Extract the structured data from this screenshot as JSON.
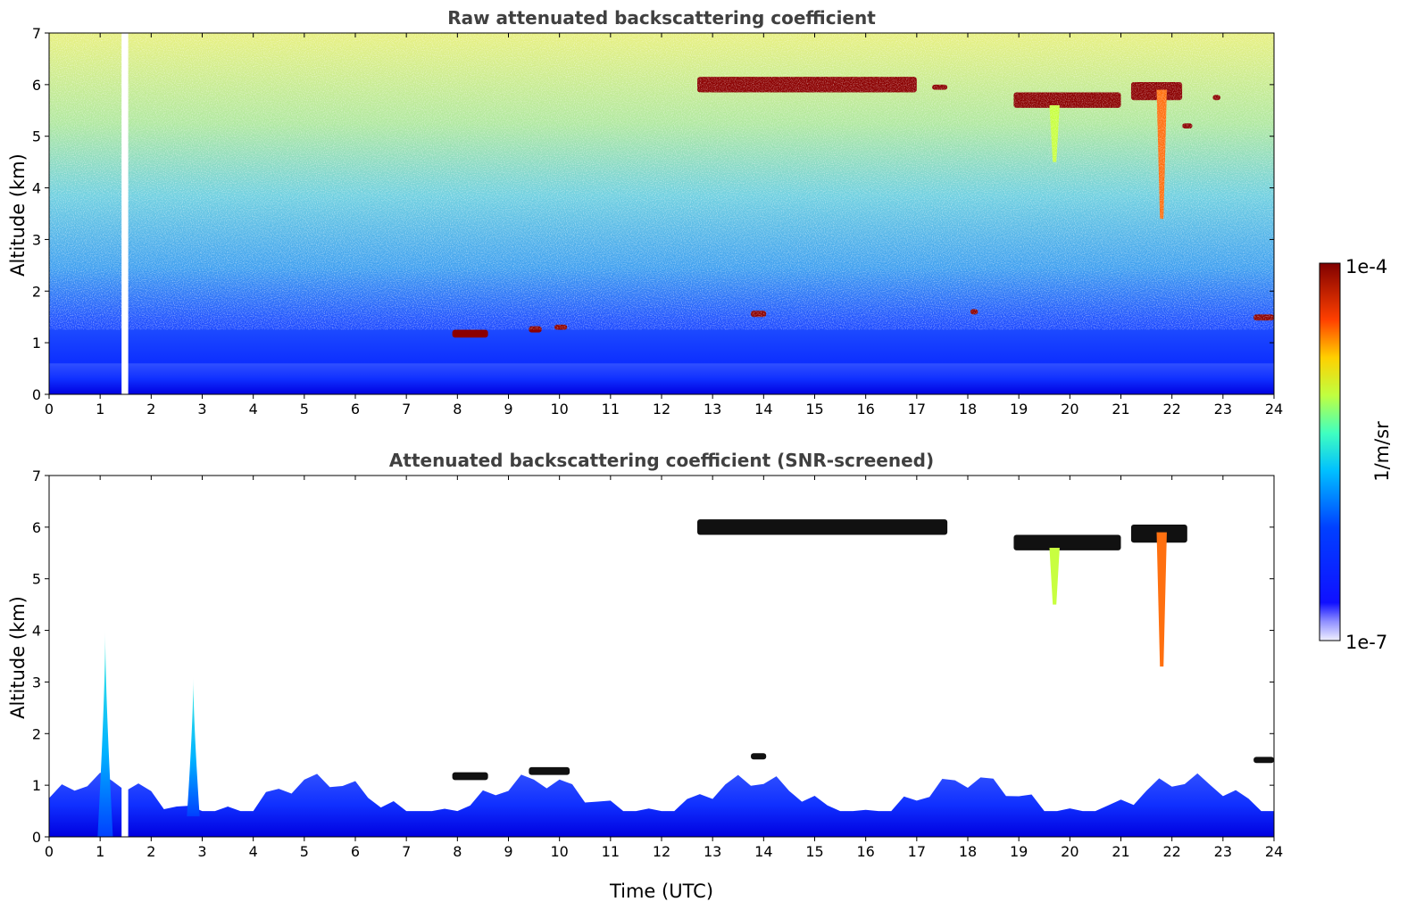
{
  "chart_data": [
    {
      "type": "heatmap",
      "title": "Raw attenuated backscattering coefficient",
      "xlabel": "",
      "ylabel": "Altitude (km)",
      "xlim": [
        0,
        24
      ],
      "ylim": [
        0,
        7
      ],
      "xticks": [
        "0",
        "1",
        "2",
        "3",
        "4",
        "5",
        "6",
        "7",
        "8",
        "9",
        "10",
        "11",
        "12",
        "13",
        "14",
        "15",
        "16",
        "17",
        "18",
        "19",
        "20",
        "21",
        "22",
        "23",
        "24"
      ],
      "yticks": [
        "0",
        "1",
        "2",
        "3",
        "4",
        "5",
        "6",
        "7"
      ],
      "features": [
        {
          "kind": "surface_layer",
          "x": [
            0,
            24
          ],
          "y": [
            0,
            0.6
          ],
          "level": "high-blue"
        },
        {
          "kind": "noise_gradient",
          "x": [
            0,
            24
          ],
          "y": [
            0.6,
            7
          ],
          "level": "blue-to-yellow"
        },
        {
          "kind": "cloud",
          "x": [
            12.7,
            17.0
          ],
          "y": [
            5.85,
            6.15
          ],
          "level": "saturated"
        },
        {
          "kind": "cloud",
          "x": [
            17.3,
            17.6
          ],
          "y": [
            5.9,
            6.0
          ],
          "level": "saturated"
        },
        {
          "kind": "cloud",
          "x": [
            18.9,
            21.0
          ],
          "y": [
            5.55,
            5.85
          ],
          "level": "saturated"
        },
        {
          "kind": "cloud",
          "x": [
            21.2,
            22.2
          ],
          "y": [
            5.7,
            6.05
          ],
          "level": "saturated"
        },
        {
          "kind": "cloud",
          "x": [
            22.8,
            22.95
          ],
          "y": [
            5.7,
            5.8
          ],
          "level": "saturated"
        },
        {
          "kind": "cloud",
          "x": [
            22.2,
            22.4
          ],
          "y": [
            5.15,
            5.25
          ],
          "level": "saturated"
        },
        {
          "kind": "cloud",
          "x": [
            7.9,
            8.6
          ],
          "y": [
            1.1,
            1.25
          ],
          "level": "saturated"
        },
        {
          "kind": "cloud",
          "x": [
            9.4,
            9.65
          ],
          "y": [
            1.2,
            1.32
          ],
          "level": "saturated"
        },
        {
          "kind": "cloud",
          "x": [
            9.9,
            10.15
          ],
          "y": [
            1.25,
            1.35
          ],
          "level": "saturated"
        },
        {
          "kind": "cloud",
          "x": [
            13.75,
            14.05
          ],
          "y": [
            1.5,
            1.62
          ],
          "level": "saturated"
        },
        {
          "kind": "cloud",
          "x": [
            18.05,
            18.2
          ],
          "y": [
            1.55,
            1.65
          ],
          "level": "saturated"
        },
        {
          "kind": "cloud",
          "x": [
            23.6,
            24.0
          ],
          "y": [
            1.43,
            1.55
          ],
          "level": "saturated"
        },
        {
          "kind": "virga",
          "x": [
            19.6,
            19.8
          ],
          "y": [
            4.5,
            5.6
          ],
          "level": "yellow-green"
        },
        {
          "kind": "virga",
          "x": [
            21.7,
            21.9
          ],
          "y": [
            3.4,
            5.9
          ],
          "level": "orange"
        },
        {
          "kind": "data_gap",
          "x": [
            1.42,
            1.55
          ],
          "y": [
            0,
            7
          ]
        }
      ]
    },
    {
      "type": "heatmap",
      "title": "Attenuated backscattering coefficient (SNR-screened)",
      "xlabel": "Time (UTC)",
      "ylabel": "Altitude (km)",
      "xlim": [
        0,
        24
      ],
      "ylim": [
        0,
        7
      ],
      "xticks": [
        "0",
        "1",
        "2",
        "3",
        "4",
        "5",
        "6",
        "7",
        "8",
        "9",
        "10",
        "11",
        "12",
        "13",
        "14",
        "15",
        "16",
        "17",
        "18",
        "19",
        "20",
        "21",
        "22",
        "23",
        "24"
      ],
      "yticks": [
        "0",
        "1",
        "2",
        "3",
        "4",
        "5",
        "6",
        "7"
      ],
      "features": [
        {
          "kind": "boundary_layer",
          "x": [
            0,
            24
          ],
          "y": [
            0,
            1.2
          ],
          "level": "blue"
        },
        {
          "kind": "plume",
          "x": [
            0.95,
            1.25
          ],
          "y": [
            0,
            4.0
          ],
          "level": "cyan"
        },
        {
          "kind": "plume",
          "x": [
            2.7,
            2.95
          ],
          "y": [
            0.4,
            3.1
          ],
          "level": "cyan"
        },
        {
          "kind": "cloud",
          "x": [
            12.7,
            17.6
          ],
          "y": [
            5.85,
            6.15
          ],
          "level": "saturated"
        },
        {
          "kind": "cloud",
          "x": [
            18.9,
            21.0
          ],
          "y": [
            5.55,
            5.85
          ],
          "level": "saturated"
        },
        {
          "kind": "cloud",
          "x": [
            21.2,
            22.3
          ],
          "y": [
            5.7,
            6.05
          ],
          "level": "saturated"
        },
        {
          "kind": "cloud",
          "x": [
            7.9,
            8.6
          ],
          "y": [
            1.1,
            1.25
          ],
          "level": "saturated"
        },
        {
          "kind": "cloud",
          "x": [
            9.4,
            10.2
          ],
          "y": [
            1.2,
            1.35
          ],
          "level": "saturated"
        },
        {
          "kind": "cloud",
          "x": [
            13.75,
            14.05
          ],
          "y": [
            1.5,
            1.62
          ],
          "level": "saturated"
        },
        {
          "kind": "cloud",
          "x": [
            23.6,
            24.0
          ],
          "y": [
            1.43,
            1.55
          ],
          "level": "saturated"
        },
        {
          "kind": "virga",
          "x": [
            19.6,
            19.8
          ],
          "y": [
            4.5,
            5.6
          ],
          "level": "yellow-green"
        },
        {
          "kind": "virga",
          "x": [
            21.7,
            21.9
          ],
          "y": [
            3.3,
            5.9
          ],
          "level": "orange"
        },
        {
          "kind": "data_gap",
          "x": [
            1.42,
            1.55
          ],
          "y": [
            0,
            7
          ]
        }
      ]
    }
  ],
  "colorbar": {
    "label": "1/m/sr",
    "max_label": "1e-4",
    "min_label": "1e-7",
    "range": [
      1e-07,
      0.0001
    ],
    "scale": "log",
    "colormap": "jet"
  }
}
